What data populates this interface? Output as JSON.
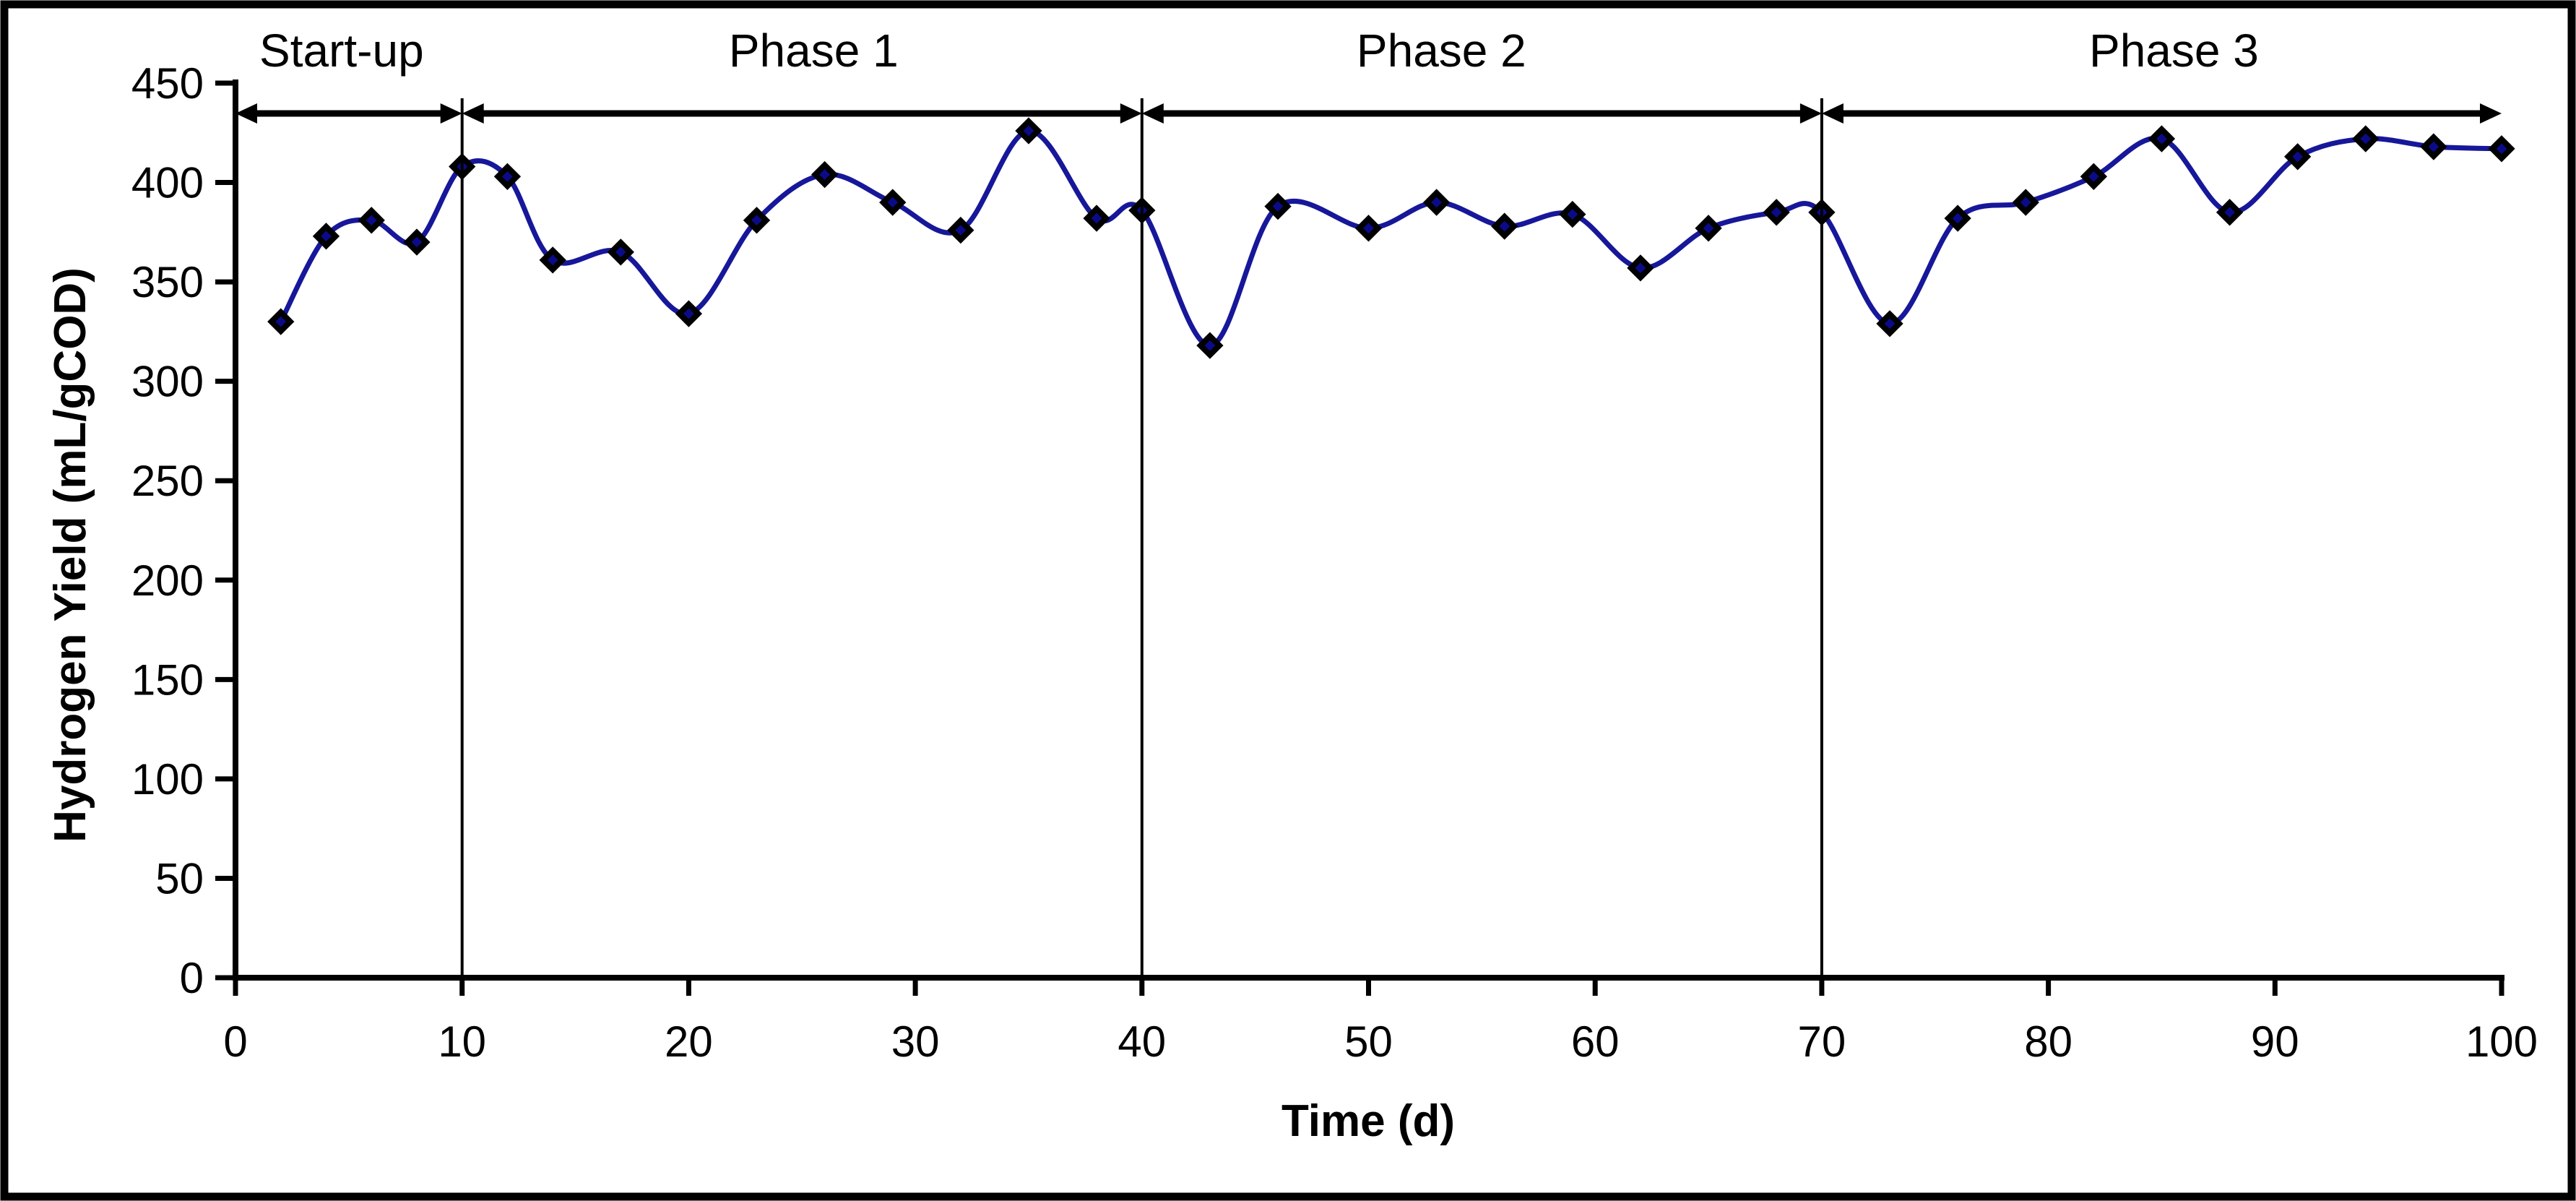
{
  "chart_data": {
    "type": "line",
    "title": "",
    "xlabel": "Time (d)",
    "ylabel": "Hydrogen Yield (mL/gCOD)",
    "xlim": [
      0,
      100
    ],
    "ylim": [
      0,
      450
    ],
    "x_ticks": [
      0,
      10,
      20,
      30,
      40,
      50,
      60,
      70,
      80,
      90,
      100
    ],
    "y_ticks": [
      0,
      50,
      100,
      150,
      200,
      250,
      300,
      350,
      400,
      450
    ],
    "grid": false,
    "legend": "none",
    "line_style": "smoothed",
    "marker": "diamond",
    "series": [
      {
        "name": "hydrogen-yield",
        "x": [
          2,
          4,
          6,
          8,
          10,
          12,
          14,
          17,
          20,
          23,
          26,
          29,
          32,
          35,
          38,
          40,
          43,
          46,
          50,
          53,
          56,
          59,
          62,
          65,
          68,
          70,
          73,
          76,
          79,
          82,
          85,
          88,
          91,
          94,
          97,
          100
        ],
        "y": [
          330,
          373,
          381,
          370,
          408,
          403,
          361,
          365,
          334,
          381,
          404,
          390,
          376,
          426,
          382,
          386,
          318,
          388,
          377,
          390,
          378,
          384,
          357,
          377,
          385,
          385,
          329,
          382,
          390,
          403,
          422,
          385,
          413,
          422,
          418,
          417
        ]
      }
    ],
    "annotations": {
      "phases": [
        {
          "label": "Start-up",
          "start": 0,
          "end": 10
        },
        {
          "label": "Phase 1",
          "start": 10,
          "end": 40
        },
        {
          "label": "Phase 2",
          "start": 40,
          "end": 70
        },
        {
          "label": "Phase 3",
          "start": 70,
          "end": 100
        }
      ],
      "boundary_lines_at": [
        10,
        40,
        70
      ]
    },
    "colors": {
      "line": "#17179a",
      "marker_fill": "#0b0b8a",
      "marker_edge": "#000000",
      "axis": "#000000",
      "border": "#000000",
      "background": "#ffffff"
    }
  }
}
